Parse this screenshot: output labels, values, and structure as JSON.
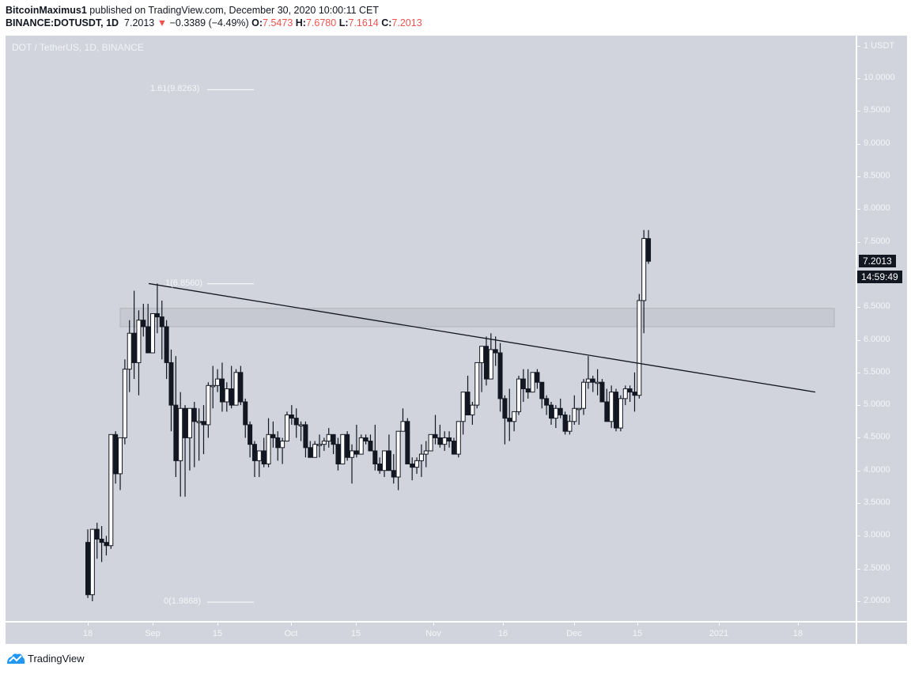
{
  "header": {
    "author": "BitcoinMaximus1",
    "published_text": " published on TradingView.com, December 30, 2020 10:00:11 CET",
    "symbol": "BINANCE:DOTUSDT, 1D",
    "last": "7.2013",
    "change_arrow": "▼",
    "change": "−0.3389 (−4.49%)",
    "o_label": "O:",
    "o": "7.5473",
    "h_label": "H:",
    "h": "7.6780",
    "l_label": "L:",
    "l": "7.1614",
    "c_label": "C:",
    "c": "7.2013"
  },
  "chart_title": "DOT / TetherUS, 1D, BINANCE",
  "price_axis": {
    "unit_label": "1 USDT",
    "ticks": [
      "10.0000",
      "9.5000",
      "9.0000",
      "8.5000",
      "8.0000",
      "7.5000",
      "6.5000",
      "6.0000",
      "5.5000",
      "5.0000",
      "4.5000",
      "4.0000",
      "3.5000",
      "3.0000",
      "2.5000",
      "2.0000"
    ],
    "last_price_tag": "7.2013",
    "countdown_tag": "14:59:49"
  },
  "time_axis": {
    "ticks": [
      "18",
      "Sep",
      "15",
      "Oct",
      "15",
      "Nov",
      "16",
      "Dec",
      "15",
      "2021",
      "18"
    ]
  },
  "fib_levels": [
    {
      "label": "1.61(9.8263)",
      "price": 9.8263
    },
    {
      "label": "1(6.8560)",
      "price": 6.856
    },
    {
      "label": "0(1.9868)",
      "price": 1.9868
    }
  ],
  "footer": {
    "brand": "TradingView"
  },
  "colors": {
    "bull_body": "#ffffff",
    "bear_body": "#131722",
    "wick": "#131722",
    "down": "#ef5350",
    "bg": "#d1d4dc"
  },
  "chart_data": {
    "type": "candlestick",
    "title": "DOT / TetherUS, 1D, BINANCE",
    "xlabel": "",
    "ylabel": "USDT",
    "ylim": [
      1.85,
      10.3
    ],
    "x_start": "2020-08-18",
    "annotations": [
      {
        "type": "trendline",
        "from": [
          "2020-08-31",
          6.86
        ],
        "to": [
          "2021-01-22",
          5.2
        ]
      },
      {
        "type": "zone",
        "from_date": "2020-08-25",
        "to_date": "2021-01-30",
        "low": 6.2,
        "high": 6.48
      },
      {
        "type": "fib",
        "levels": [
          0,
          1,
          1.61
        ],
        "prices": [
          1.9868,
          6.856,
          9.8263
        ]
      }
    ],
    "candles": [
      [
        2.9,
        3.1,
        2.05,
        2.1
      ],
      [
        2.1,
        3.1,
        2.0,
        3.1
      ],
      [
        3.1,
        3.2,
        2.65,
        2.95
      ],
      [
        2.95,
        3.15,
        2.6,
        2.9
      ],
      [
        2.9,
        3.0,
        2.7,
        2.85
      ],
      [
        2.85,
        4.55,
        2.8,
        4.55
      ],
      [
        4.55,
        4.6,
        3.8,
        3.95
      ],
      [
        3.95,
        4.5,
        3.7,
        4.5
      ],
      [
        4.5,
        5.7,
        4.4,
        5.55
      ],
      [
        5.55,
        6.3,
        5.2,
        6.1
      ],
      [
        6.1,
        6.75,
        5.4,
        5.65
      ],
      [
        5.65,
        6.45,
        5.15,
        6.3
      ],
      [
        6.3,
        6.55,
        6.05,
        6.2
      ],
      [
        6.2,
        6.55,
        5.85,
        5.8
      ],
      [
        5.8,
        6.3,
        5.9,
        6.4
      ],
      [
        6.4,
        6.86,
        6.1,
        6.35
      ],
      [
        6.35,
        6.6,
        5.7,
        6.2
      ],
      [
        6.2,
        6.3,
        5.4,
        5.65
      ],
      [
        5.65,
        5.85,
        4.6,
        5.0
      ],
      [
        5.0,
        5.75,
        3.9,
        4.15
      ],
      [
        4.15,
        5.2,
        3.6,
        4.95
      ],
      [
        4.95,
        5.0,
        3.6,
        4.5
      ],
      [
        4.5,
        4.7,
        4.0,
        4.95
      ],
      [
        4.95,
        5.05,
        4.05,
        4.75
      ],
      [
        4.75,
        4.95,
        4.15,
        4.75
      ],
      [
        4.75,
        5.0,
        4.25,
        4.7
      ],
      [
        4.7,
        5.35,
        4.5,
        5.3
      ],
      [
        5.3,
        5.6,
        4.95,
        5.3
      ],
      [
        5.3,
        5.55,
        5.2,
        5.4
      ],
      [
        5.4,
        5.65,
        4.9,
        5.05
      ],
      [
        5.05,
        5.35,
        4.9,
        5.25
      ],
      [
        5.25,
        5.6,
        4.95,
        5.0
      ],
      [
        5.0,
        5.55,
        5.15,
        5.5
      ],
      [
        5.5,
        5.6,
        5.0,
        5.05
      ],
      [
        5.05,
        5.1,
        4.5,
        4.7
      ],
      [
        4.7,
        4.75,
        4.2,
        4.4
      ],
      [
        4.4,
        4.45,
        3.9,
        4.15
      ],
      [
        4.15,
        4.3,
        3.9,
        4.3
      ],
      [
        4.3,
        4.5,
        4.05,
        4.1
      ],
      [
        4.1,
        4.8,
        4.05,
        4.55
      ],
      [
        4.55,
        4.75,
        4.35,
        4.5
      ],
      [
        4.5,
        4.6,
        4.15,
        4.35
      ],
      [
        4.35,
        4.5,
        4.1,
        4.45
      ],
      [
        4.45,
        4.9,
        4.45,
        4.85
      ],
      [
        4.85,
        5.0,
        4.7,
        4.8
      ],
      [
        4.8,
        4.95,
        4.5,
        4.7
      ],
      [
        4.7,
        4.75,
        4.45,
        4.7
      ],
      [
        4.7,
        4.75,
        4.2,
        4.35
      ],
      [
        4.35,
        4.45,
        4.25,
        4.2
      ],
      [
        4.2,
        4.45,
        4.3,
        4.4
      ],
      [
        4.4,
        4.55,
        4.2,
        4.4
      ],
      [
        4.4,
        4.5,
        4.3,
        4.45
      ],
      [
        4.45,
        4.65,
        4.35,
        4.55
      ],
      [
        4.55,
        4.55,
        4.25,
        4.4
      ],
      [
        4.4,
        4.5,
        4.0,
        4.1
      ],
      [
        4.1,
        4.55,
        4.3,
        4.55
      ],
      [
        4.55,
        4.6,
        4.15,
        4.2
      ],
      [
        4.2,
        4.4,
        3.8,
        4.3
      ],
      [
        4.3,
        4.7,
        4.2,
        4.25
      ],
      [
        4.25,
        4.55,
        4.3,
        4.5
      ],
      [
        4.5,
        4.55,
        4.4,
        4.45
      ],
      [
        4.45,
        4.55,
        4.3,
        4.3
      ],
      [
        4.3,
        4.7,
        4.0,
        4.1
      ],
      [
        4.1,
        4.2,
        3.95,
        4.0
      ],
      [
        4.0,
        4.3,
        3.9,
        4.3
      ],
      [
        4.3,
        4.55,
        4.0,
        4.0
      ],
      [
        4.0,
        4.25,
        3.8,
        3.9
      ],
      [
        3.9,
        4.6,
        3.7,
        4.6
      ],
      [
        4.6,
        4.95,
        4.6,
        4.75
      ],
      [
        4.75,
        4.8,
        4.1,
        4.1
      ],
      [
        4.1,
        4.2,
        3.85,
        4.05
      ],
      [
        4.05,
        4.2,
        3.95,
        4.15
      ],
      [
        4.15,
        4.4,
        3.9,
        4.25
      ],
      [
        4.25,
        4.45,
        4.05,
        4.3
      ],
      [
        4.3,
        4.55,
        4.3,
        4.55
      ],
      [
        4.55,
        4.85,
        4.4,
        4.5
      ],
      [
        4.5,
        4.7,
        4.35,
        4.4
      ],
      [
        4.4,
        4.6,
        4.3,
        4.5
      ],
      [
        4.5,
        4.6,
        4.35,
        4.45
      ],
      [
        4.45,
        4.5,
        4.25,
        4.25
      ],
      [
        4.25,
        4.75,
        4.2,
        4.75
      ],
      [
        4.75,
        5.2,
        4.55,
        5.2
      ],
      [
        5.2,
        5.45,
        4.9,
        4.85
      ],
      [
        4.85,
        5.05,
        4.7,
        5.0
      ],
      [
        5.0,
        5.65,
        4.95,
        5.65
      ],
      [
        5.65,
        5.9,
        5.2,
        5.9
      ],
      [
        5.9,
        6.05,
        5.3,
        5.4
      ],
      [
        5.4,
        6.1,
        5.4,
        5.85
      ],
      [
        5.85,
        6.05,
        5.6,
        5.8
      ],
      [
        5.8,
        5.95,
        4.9,
        5.1
      ],
      [
        5.1,
        5.15,
        4.4,
        4.8
      ],
      [
        4.8,
        5.25,
        4.45,
        4.75
      ],
      [
        4.75,
        4.9,
        4.6,
        4.9
      ],
      [
        4.9,
        5.45,
        4.85,
        5.4
      ],
      [
        5.4,
        5.55,
        5.05,
        5.25
      ],
      [
        5.25,
        5.55,
        5.1,
        5.2
      ],
      [
        5.2,
        5.45,
        5.2,
        5.5
      ],
      [
        5.5,
        5.55,
        5.25,
        5.35
      ],
      [
        5.35,
        5.35,
        4.95,
        5.1
      ],
      [
        5.1,
        5.15,
        4.85,
        5.0
      ],
      [
        5.0,
        5.05,
        4.7,
        4.8
      ],
      [
        4.8,
        5.0,
        4.65,
        4.95
      ],
      [
        4.95,
        5.1,
        4.8,
        4.85
      ],
      [
        4.85,
        4.9,
        4.55,
        4.6
      ],
      [
        4.6,
        4.85,
        4.55,
        4.75
      ],
      [
        4.75,
        5.15,
        4.7,
        4.95
      ],
      [
        4.95,
        4.95,
        4.7,
        4.95
      ],
      [
        4.95,
        5.4,
        4.85,
        5.35
      ],
      [
        5.35,
        5.75,
        5.25,
        5.4
      ],
      [
        5.4,
        5.45,
        5.2,
        5.35
      ],
      [
        5.35,
        5.55,
        5.15,
        5.35
      ],
      [
        5.35,
        5.4,
        5.05,
        5.05
      ],
      [
        5.05,
        5.25,
        4.8,
        4.75
      ],
      [
        4.75,
        5.3,
        4.65,
        5.2
      ],
      [
        5.2,
        5.25,
        4.6,
        4.65
      ],
      [
        4.65,
        5.15,
        4.6,
        5.1
      ],
      [
        5.1,
        5.3,
        5.0,
        5.25
      ],
      [
        5.25,
        5.3,
        5.05,
        5.2
      ],
      [
        5.2,
        5.5,
        4.9,
        5.15
      ],
      [
        5.15,
        6.7,
        5.1,
        6.6
      ],
      [
        6.6,
        7.68,
        6.1,
        7.55
      ],
      [
        7.5473,
        7.678,
        7.1614,
        7.2013
      ]
    ]
  }
}
